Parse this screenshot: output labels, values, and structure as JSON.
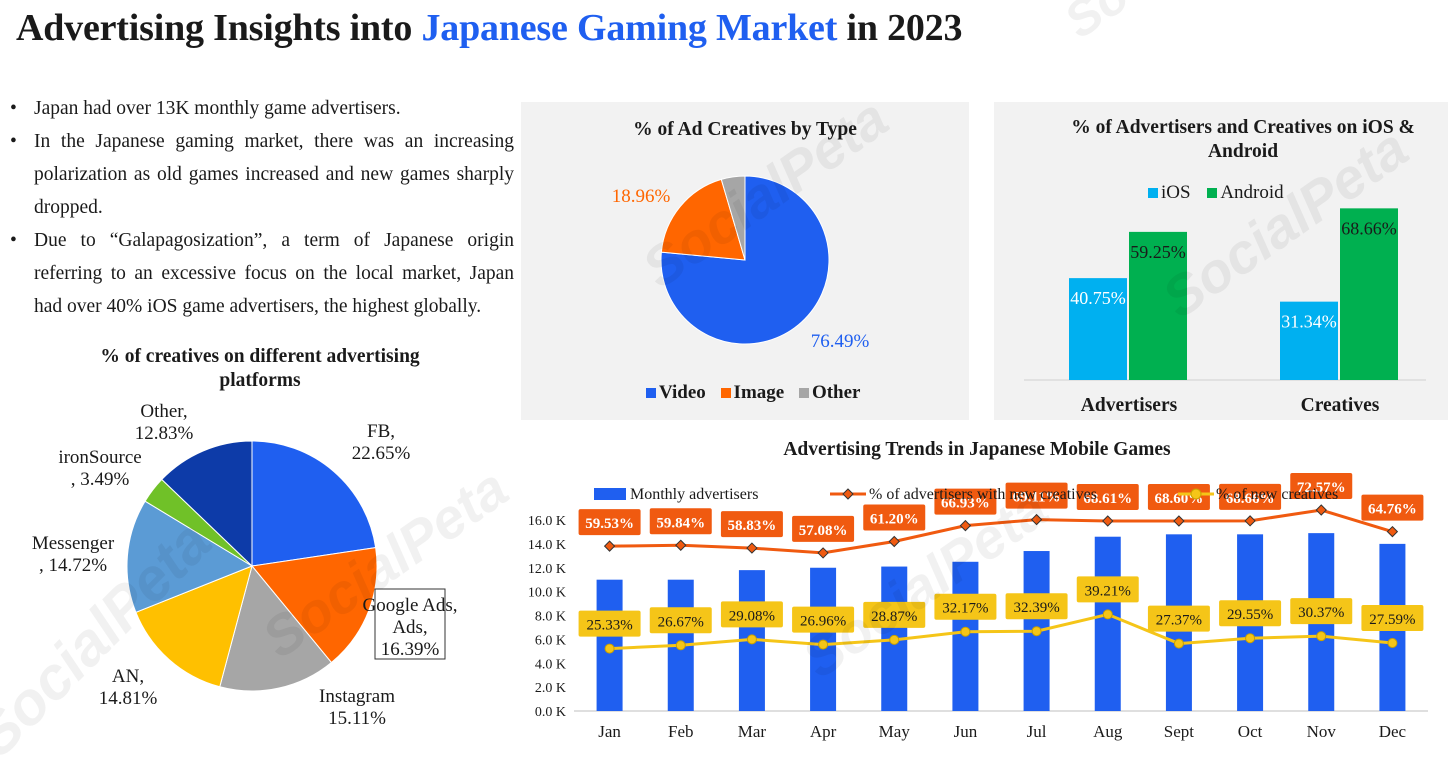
{
  "header": {
    "title_part1": "Advertising Insights into ",
    "title_highlight": "Japanese Gaming Market",
    "title_part2": " in 2023"
  },
  "bullets": [
    "Japan had over 13K monthly game advertisers.",
    "In the Japanese gaming market, there was an increasing polarization as old games increased and new games sharply dropped.",
    "Due to “Galapagosization”, a term of Japanese origin referring to an excessive focus on the local market, Japan had over 40% iOS game advertisers, the highest globally."
  ],
  "watermark": "SocialPeta",
  "colors": {
    "blue": "#1f5ff0",
    "orange": "#ff6600",
    "gray": "#a6a6a6",
    "ios": "#00b0f0",
    "android": "#00b050",
    "yellow": "#f5c518",
    "label_orange": "#f05a10"
  },
  "chart_data": [
    {
      "id": "platforms",
      "type": "pie",
      "title": "% of creatives on different advertising platforms",
      "slices": [
        {
          "label": "FB,",
          "value_label": "22.65%",
          "value": 22.65,
          "color": "#1f5ff0"
        },
        {
          "label": "Google Ads,",
          "value_label": "16.39%",
          "value": 16.39,
          "color": "#ff6600"
        },
        {
          "label": "Instagram",
          "value_label": "15.11%",
          "value": 15.11,
          "color": "#a6a6a6"
        },
        {
          "label": "AN,",
          "value_label": "14.81%",
          "value": 14.81,
          "color": "#ffc000"
        },
        {
          "label": "Messenger",
          ",value_label_note": "",
          "value_label": ", 14.72%",
          "value": 14.72,
          "color": "#5b9bd5"
        },
        {
          "label": "ironSource",
          ",value_label_note": "",
          "value_label": ", 3.49%",
          "value": 3.49,
          "color": "#70c128"
        },
        {
          "label": "Other,",
          "value_label": "12.83%",
          "value": 12.83,
          "color": "#0d3ba8"
        }
      ]
    },
    {
      "id": "creative_types",
      "type": "pie",
      "title": "% of Ad Creatives by Type",
      "slices": [
        {
          "label": "Video",
          "value": 76.49,
          "value_label": "76.49%",
          "color": "#1f5ff0"
        },
        {
          "label": "Image",
          "value": 18.96,
          "value_label": "18.96%",
          "color": "#ff6600"
        },
        {
          "label": "Other",
          "value": 4.55,
          "value_label": "",
          "color": "#a6a6a6"
        }
      ]
    },
    {
      "id": "ios_android",
      "type": "bar",
      "title": "% of Advertisers and Creatives on iOS & Android",
      "categories": [
        "Advertisers",
        "Creatives"
      ],
      "series": [
        {
          "name": "iOS",
          "values": [
            40.75,
            31.34
          ],
          "labels": [
            "40.75%",
            "31.34%"
          ],
          "color": "#00b0f0"
        },
        {
          "name": "Android",
          "values": [
            59.25,
            68.66
          ],
          "labels": [
            "59.25%",
            "68.66%"
          ],
          "color": "#00b050"
        }
      ],
      "ylim": [
        0,
        80
      ]
    },
    {
      "id": "trends",
      "type": "bar",
      "title": "Advertising Trends in Japanese Mobile Games",
      "categories": [
        "Jan",
        "Feb",
        "Mar",
        "Apr",
        "May",
        "Jun",
        "Jul",
        "Aug",
        "Sept",
        "Oct",
        "Nov",
        "Dec"
      ],
      "yticks": [
        "16.0 K",
        "14.0 K",
        "12.0 K",
        "10.0 K",
        "8.0 K",
        "6.0 K",
        "4.0 K",
        "2.0 K",
        "0.0 K"
      ],
      "ylim": [
        0,
        16
      ],
      "series": [
        {
          "name": "Monthly advertisers",
          "type": "bar",
          "values": [
            11.0,
            11.0,
            11.8,
            12.0,
            12.1,
            12.5,
            13.4,
            14.6,
            14.8,
            14.8,
            14.9,
            14.0
          ],
          "color": "#1f5ff0"
        },
        {
          "name": "% of advertisers with new creatives",
          "type": "line",
          "values": [
            59.53,
            59.84,
            58.83,
            57.08,
            61.2,
            66.93,
            69.11,
            68.61,
            68.6,
            68.66,
            72.57,
            64.76
          ],
          "labels": [
            "59.53%",
            "59.84%",
            "58.83%",
            "57.08%",
            "61.20%",
            "66.93%",
            "69.11%",
            "68.61%",
            "68.60%",
            "68.66%",
            "72.57%",
            "64.76%"
          ],
          "color": "#f05a10"
        },
        {
          "name": "% of new creatives",
          "type": "line",
          "values": [
            25.33,
            26.67,
            29.08,
            26.96,
            28.87,
            32.17,
            32.39,
            39.21,
            27.37,
            29.55,
            30.37,
            27.59
          ],
          "labels": [
            "25.33%",
            "26.67%",
            "29.08%",
            "26.96%",
            "28.87%",
            "32.17%",
            "32.39%",
            "39.21%",
            "27.37%",
            "29.55%",
            "30.37%",
            "27.59%"
          ],
          "color": "#f5c518"
        }
      ]
    }
  ]
}
